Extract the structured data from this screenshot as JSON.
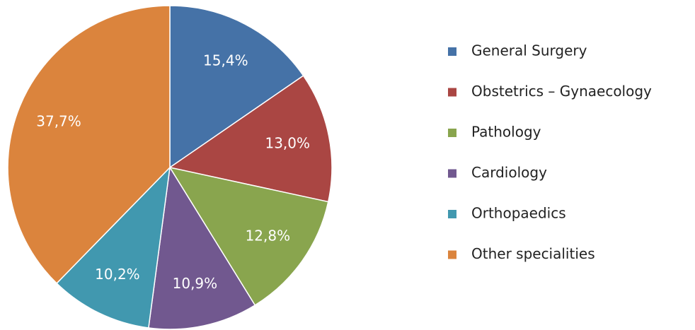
{
  "chart_data": {
    "type": "pie",
    "categories": [
      "General Surgery",
      "Obstetrics – Gynaecology",
      "Pathology",
      "Cardiology",
      "Orthopaedics",
      "Other specialities"
    ],
    "values": [
      15.4,
      13.0,
      12.8,
      10.9,
      10.2,
      37.7
    ],
    "value_labels": [
      "15,4%",
      "13,0%",
      "12,8%",
      "10,9%",
      "10,2%",
      "37,7%"
    ],
    "colors": [
      "#4572a7",
      "#aa4643",
      "#89a54e",
      "#71588f",
      "#4198af",
      "#db843d"
    ],
    "legend": "right"
  }
}
